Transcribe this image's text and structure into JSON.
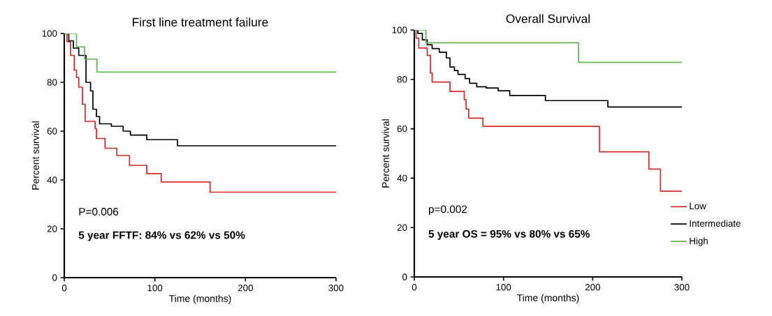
{
  "chart_data": [
    {
      "type": "step",
      "title": "First line treatment failure",
      "xlabel": "Time (months)",
      "ylabel": "Percent survival",
      "xlim": [
        0,
        300
      ],
      "ylim": [
        0,
        100
      ],
      "xticks": [
        0,
        100,
        200,
        300
      ],
      "yticks": [
        0,
        20,
        40,
        60,
        80,
        100
      ],
      "grid": false,
      "legend": false,
      "annotations": [
        "P=0.006",
        "**5 year FFTF: 84% vs 62% vs 50%**"
      ],
      "series": [
        {
          "color": "#d62b2b",
          "x": [
            0,
            3,
            7,
            11,
            13.5,
            16,
            20,
            23,
            34,
            35.5,
            45,
            58,
            72,
            91,
            107,
            161,
            300
          ],
          "values": [
            100,
            96.6,
            91,
            85,
            82,
            78,
            71,
            64,
            61,
            57,
            53,
            50,
            46,
            42.6,
            39.2,
            35,
            35
          ]
        },
        {
          "color": "#000000",
          "x": [
            0,
            5,
            10,
            16,
            24,
            29,
            31.6,
            35.5,
            39,
            52,
            65,
            73,
            91,
            125,
            300
          ],
          "values": [
            100,
            97,
            94,
            91,
            80,
            76.5,
            69,
            66,
            63,
            62,
            60,
            58.4,
            56.5,
            54,
            54
          ]
        },
        {
          "color": "#5cb84a",
          "x": [
            0,
            13.5,
            22.5,
            36,
            300
          ],
          "values": [
            100,
            94.5,
            89.5,
            84.2,
            84.2
          ]
        }
      ]
    },
    {
      "type": "step",
      "title": "Overall Survival",
      "xlabel": "Time (months)",
      "ylabel": "Percent survival",
      "xlim": [
        0,
        300
      ],
      "ylim": [
        0,
        100
      ],
      "xticks": [
        0,
        100,
        200,
        300
      ],
      "yticks": [
        0,
        20,
        40,
        60,
        80,
        100
      ],
      "grid": false,
      "legend": "bottom right",
      "annotations": [
        "p=0.002",
        "**5 year OS = 95% vs 80% vs 65%**"
      ],
      "series": [
        {
          "name": "Low",
          "color": "#d62b2b",
          "x": [
            0,
            2,
            5,
            14.5,
            18,
            20,
            40,
            56,
            58,
            61,
            77,
            207.5,
            263,
            276,
            300
          ],
          "values": [
            100,
            96.7,
            92.7,
            89.7,
            82.6,
            78.9,
            75.1,
            71.8,
            68,
            64.3,
            61,
            50.7,
            43.7,
            34.7,
            34.7
          ]
        },
        {
          "name": "Intermediate",
          "color": "#000000",
          "x": [
            0,
            4,
            9,
            14.5,
            20,
            28,
            36,
            40,
            45,
            49,
            57,
            62,
            70,
            80.6,
            94,
            107,
            147,
            217,
            300
          ],
          "values": [
            100,
            98.6,
            96,
            94,
            92.5,
            91,
            88.7,
            85,
            83.6,
            82,
            80.3,
            78.4,
            77,
            76.5,
            75.4,
            73.5,
            71.4,
            68.8,
            68.8
          ]
        },
        {
          "name": "High",
          "color": "#5cb84a",
          "x": [
            0,
            13,
            184,
            300
          ],
          "values": [
            100,
            94.8,
            86.9,
            86.9
          ]
        }
      ]
    }
  ]
}
